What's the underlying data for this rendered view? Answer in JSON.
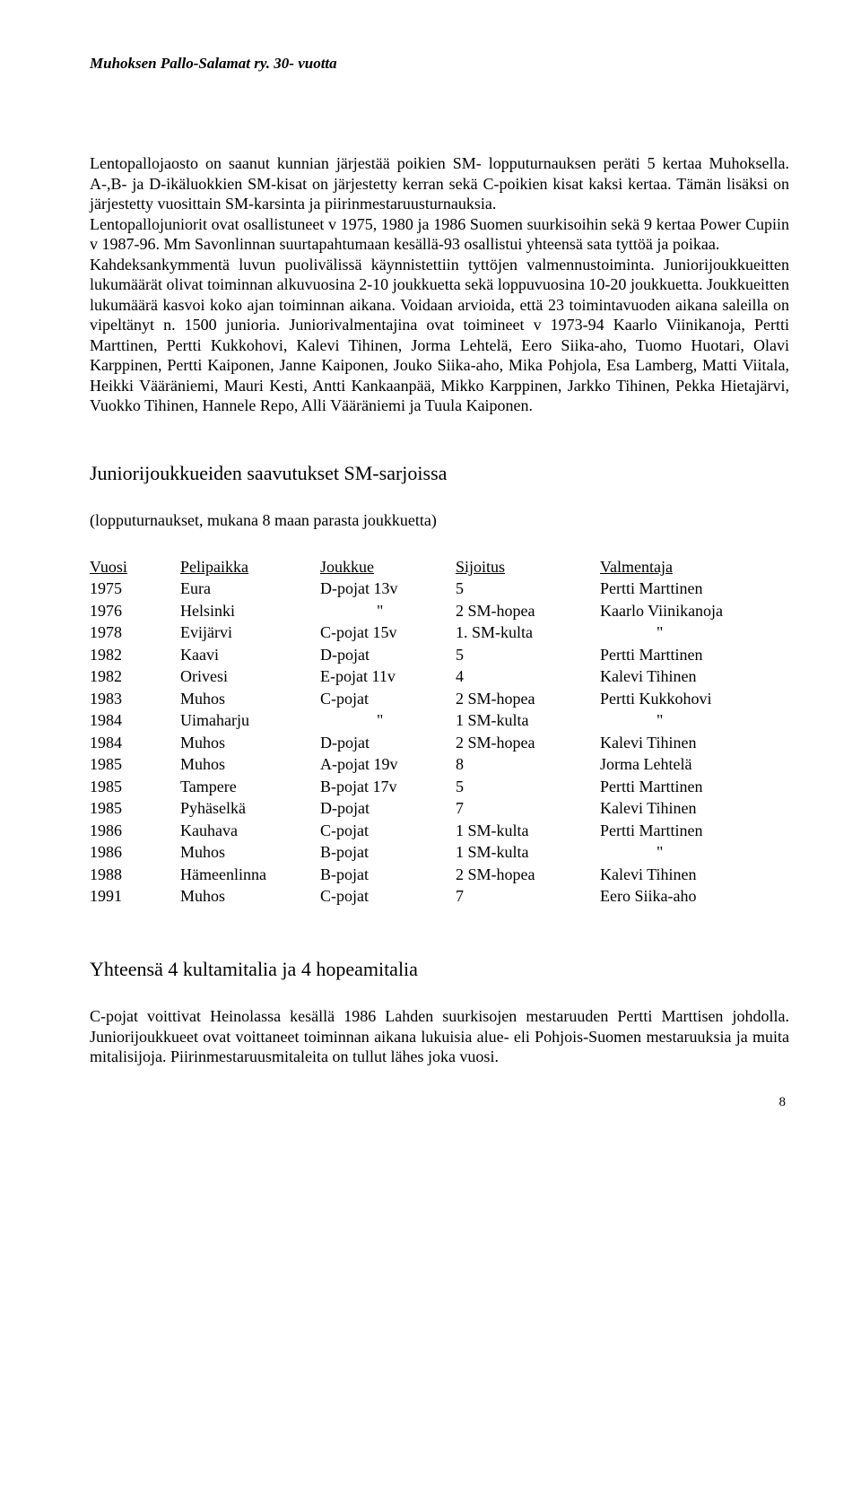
{
  "header": "Muhoksen Pallo-Salamat ry.  30- vuotta",
  "paragraph1": "Lentopallojaosto on saanut kunnian järjestää poikien SM- lopputurnauksen peräti 5 kertaa Muhoksella. A-,B- ja D-ikäluokkien SM-kisat on järjestetty kerran sekä C-poikien kisat kaksi kertaa.",
  "paragraph2": "Tämän lisäksi on järjestetty vuosittain SM-karsinta ja piirinmestaruusturnauksia.",
  "paragraph3": "Lentopallojuniorit ovat osallistuneet v 1975, 1980 ja 1986 Suomen suurkisoihin sekä 9 kertaa Power Cupiin v 1987-96. Mm Savonlinnan suurtapahtumaan kesällä-93 osallistui yhteensä sata tyttöä ja poikaa.",
  "paragraph4": "Kahdeksankymmentä luvun puolivälissä käynnistettiin tyttöjen valmennustoiminta. Juniorijoukkueitten lukumäärät olivat toiminnan alkuvuosina 2-10 joukkuetta sekä loppuvuosina 10-20 joukkuetta. Joukkueitten lukumäärä kasvoi koko ajan toiminnan aikana. Voidaan arvioida, että 23 toimintavuoden aikana saleilla on vipeltänyt n. 1500 junioria. Juniorivalmentajina ovat toimineet v 1973-94 Kaarlo Viinikanoja, Pertti Marttinen, Pertti Kukkohovi, Kalevi Tihinen, Jorma Lehtelä, Eero Siika-aho, Tuomo Huotari, Olavi Karppinen, Pertti Kaiponen, Janne Kaiponen, Jouko Siika-aho, Mika Pohjola, Esa Lamberg, Matti Viitala, Heikki Vääräniemi, Mauri Kesti, Antti Kankaanpää, Mikko Karppinen, Jarkko Tihinen, Pekka Hietajärvi, Vuokko Tihinen, Hannele Repo, Alli Vääräniemi ja Tuula Kaiponen.",
  "section_title": "Juniorijoukkueiden saavutukset SM-sarjoissa",
  "subtitle": "(lopputurnaukset, mukana 8 maan parasta joukkuetta)",
  "table": {
    "headers": [
      "Vuosi",
      "Pelipaikka",
      "Joukkue",
      "Sijoitus",
      "Valmentaja"
    ],
    "rows": [
      [
        "1975",
        "Eura",
        "D-pojat 13v",
        "5",
        "Pertti Marttinen"
      ],
      [
        "1976",
        "Helsinki",
        "\"",
        "2  SM-hopea",
        "Kaarlo Viinikanoja"
      ],
      [
        "1978",
        "Evijärvi",
        "C-pojat 15v",
        "1. SM-kulta",
        "\""
      ],
      [
        "1982",
        "Kaavi",
        "D-pojat",
        "5",
        "Pertti Marttinen"
      ],
      [
        "1982",
        "Orivesi",
        "E-pojat 11v",
        "4",
        "Kalevi Tihinen"
      ],
      [
        "1983",
        "Muhos",
        "C-pojat",
        "2 SM-hopea",
        "Pertti Kukkohovi"
      ],
      [
        "1984",
        "Uimaharju",
        "\"",
        "1 SM-kulta",
        "\""
      ],
      [
        "1984",
        "Muhos",
        "D-pojat",
        "2 SM-hopea",
        "Kalevi Tihinen"
      ],
      [
        "1985",
        "Muhos",
        "A-pojat 19v",
        "8",
        "Jorma Lehtelä"
      ],
      [
        "1985",
        "Tampere",
        "B-pojat 17v",
        "5",
        "Pertti Marttinen"
      ],
      [
        "1985",
        "Pyhäselkä",
        "D-pojat",
        "7",
        "Kalevi Tihinen"
      ],
      [
        "1986",
        "Kauhava",
        "C-pojat",
        "1 SM-kulta",
        "Pertti Marttinen"
      ],
      [
        "1986",
        "Muhos",
        "B-pojat",
        "1 SM-kulta",
        "\""
      ],
      [
        "1988",
        "Hämeenlinna",
        "B-pojat",
        "2 SM-hopea",
        "Kalevi Tihinen"
      ],
      [
        "1991",
        "Muhos",
        "C-pojat",
        "7",
        "Eero Siika-aho"
      ]
    ]
  },
  "section_title_2": "Yhteensä 4 kultamitalia ja 4 hopeamitalia",
  "paragraph5": "C-pojat voittivat Heinolassa kesällä 1986 Lahden suurkisojen mestaruuden Pertti Marttisen johdolla. Juniorijoukkueet ovat voittaneet toiminnan aikana lukuisia alue- eli Pohjois-Suomen mestaruuksia ja muita mitalisijoja. Piirinmestaruusmitaleita on tullut lähes joka vuosi.",
  "page_number": "8"
}
